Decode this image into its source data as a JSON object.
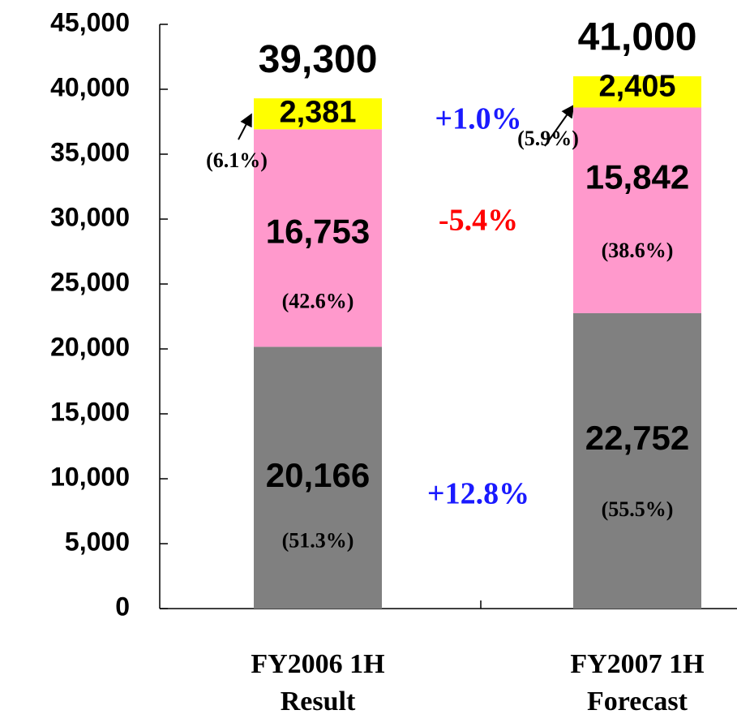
{
  "chart_data": {
    "type": "stacked_bar",
    "categories": [
      "FY2006 1H Result",
      "FY2007 1H Forecast"
    ],
    "series": [
      {
        "color": "#808080",
        "values": [
          20166,
          22752
        ],
        "value_labels": [
          "20,166",
          "22,752"
        ],
        "share_labels": [
          "(51.3%)",
          "(55.5%)"
        ],
        "change_label": "+12.8%",
        "change_color": "#1a1aff"
      },
      {
        "color": "#ff99cc",
        "values": [
          16753,
          15842
        ],
        "value_labels": [
          "16,753",
          "15,842"
        ],
        "share_labels": [
          "(42.6%)",
          "(38.6%)"
        ],
        "change_label": "-5.4%",
        "change_color": "#ff0000"
      },
      {
        "color": "#ffff00",
        "values": [
          2381,
          2405
        ],
        "value_labels": [
          "2,381",
          "2,405"
        ],
        "share_labels": [
          "(6.1%)",
          "(5.9%)"
        ],
        "change_label": "+1.0%",
        "change_color": "#1a1aff"
      }
    ],
    "totals": [
      39300,
      41000
    ],
    "total_labels": [
      "39,300",
      "41,000"
    ],
    "ylim": [
      0,
      45000
    ],
    "yticks": [
      0,
      {
        "value": 5000,
        "label": "5,000"
      },
      {
        "value": 10000,
        "label": "10,000"
      },
      {
        "value": 15000,
        "label": "15,000"
      },
      {
        "value": 20000,
        "label": "20,000"
      },
      {
        "value": 25000,
        "label": "25,000"
      },
      {
        "value": 30000,
        "label": "30,000"
      },
      {
        "value": 35000,
        "label": "35,000"
      },
      {
        "value": 40000,
        "label": "40,000"
      },
      {
        "value": 45000,
        "label": "45,000"
      }
    ]
  }
}
